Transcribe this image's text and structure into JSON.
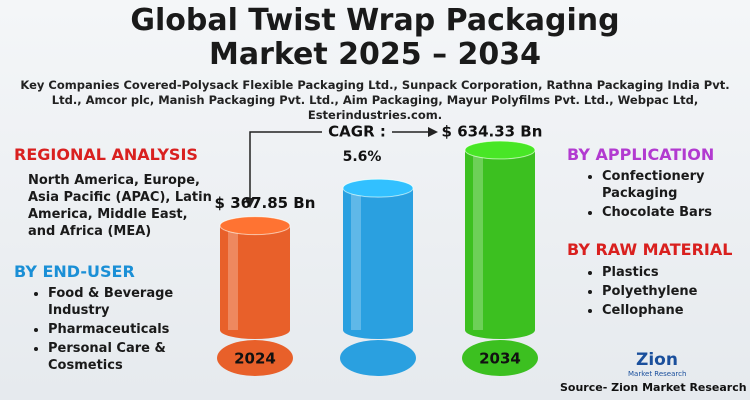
{
  "chart_data": {
    "type": "bar",
    "title": "Global Twist Wrap Packaging Market 2025 – 2034",
    "subtitle": "Key Companies Covered-Polysack Flexible Packaging Ltd., Sunpack Corporation, Rathna Packaging India Pvt. Ltd., Amcor plc, Manish Packaging Pvt. Ltd., Aim Packaging, Mayur Polyfilms Pvt. Ltd., Webpac Ltd, Esterindustries.com.",
    "categories": [
      "2024",
      null,
      "2034"
    ],
    "values": [
      367.85,
      500,
      634.33
    ],
    "value_labels": [
      "$ 367.85 Bn",
      null,
      "$ 634.33 Bn"
    ],
    "colors": [
      "#e8602a",
      "#2aa0e0",
      "#3cc020"
    ],
    "cagr_label": "CAGR :",
    "cagr_value": "5.6%"
  },
  "regional": {
    "heading": "REGIONAL ANALYSIS",
    "text": "North America, Europe, Asia Pacific (APAC), Latin America, Middle East, and Africa (MEA)"
  },
  "end_user": {
    "heading": "BY END-USER",
    "items": [
      "Food & Beverage Industry",
      "Pharmaceuticals",
      "Personal Care & Cosmetics"
    ]
  },
  "application": {
    "heading": "BY APPLICATION",
    "items": [
      "Confectionery Packaging",
      "Chocolate Bars"
    ]
  },
  "raw_material": {
    "heading": "BY RAW MATERIAL",
    "items": [
      "Plastics",
      "Polyethylene",
      "Cellophane"
    ]
  },
  "logo": {
    "name": "Zion",
    "tagline": "Market Research"
  },
  "source": "Source- Zion Market Research"
}
